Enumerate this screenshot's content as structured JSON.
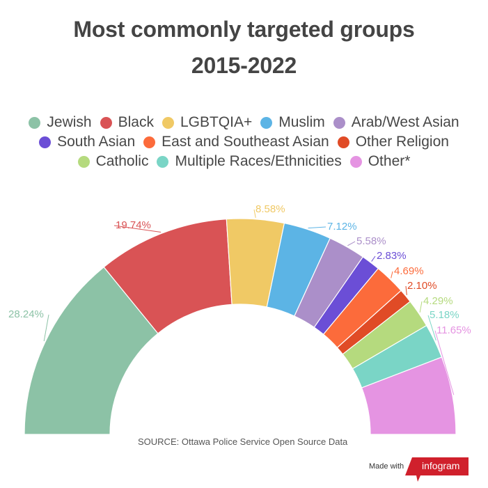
{
  "header": {
    "title_line1": "Most commonly targeted groups",
    "title_line2": "2015-2022"
  },
  "legend": {
    "rows": [
      [
        {
          "label": "Jewish",
          "color": "#8cc2a6"
        },
        {
          "label": "Black",
          "color": "#d95355"
        },
        {
          "label": "LGBTQIA+",
          "color": "#f0c965"
        },
        {
          "label": "Muslim",
          "color": "#5cb4e5"
        },
        {
          "label": "Arab/West Asian",
          "color": "#ab8fc9"
        }
      ],
      [
        {
          "label": "South Asian",
          "color": "#6b4ed6"
        },
        {
          "label": "East and Southeast Asian",
          "color": "#fc6b3b"
        },
        {
          "label": "Other Religion",
          "color": "#e04b26"
        }
      ],
      [
        {
          "label": "Catholic",
          "color": "#b5da7e"
        },
        {
          "label": "Multiple Races/Ethnicities",
          "color": "#7ad5c6"
        },
        {
          "label": "Other*",
          "color": "#e594e2"
        }
      ]
    ]
  },
  "footer": {
    "source": "SOURCE: Ottawa Police Service Open Source Data",
    "made_with": "Made with",
    "brand": "infogram",
    "brand_color": "#d0202c"
  },
  "chart_data": {
    "type": "pie",
    "subtype": "semi-donut",
    "title": "Most commonly targeted groups 2015-2022",
    "categories": [
      "Jewish",
      "Black",
      "LGBTQIA+",
      "Muslim",
      "Arab/West Asian",
      "South Asian",
      "East and Southeast Asian",
      "Other Religion",
      "Catholic",
      "Multiple Races/Ethnicities",
      "Other*"
    ],
    "values": [
      28.24,
      19.74,
      8.58,
      7.12,
      5.58,
      2.83,
      4.69,
      2.1,
      4.29,
      5.18,
      11.65
    ],
    "labels": [
      "28.24%",
      "19.74%",
      "8.58%",
      "7.12%",
      "5.58%",
      "2.83%",
      "4.69%",
      "2.10%",
      "4.29%",
      "5.18%",
      "11.65%"
    ],
    "colors": [
      "#8cc2a6",
      "#d95355",
      "#f0c965",
      "#5cb4e5",
      "#ab8fc9",
      "#6b4ed6",
      "#fc6b3b",
      "#e04b26",
      "#b5da7e",
      "#7ad5c6",
      "#e594e2"
    ],
    "unit": "%",
    "legend_position": "top",
    "source": "Ottawa Police Service Open Source Data"
  }
}
